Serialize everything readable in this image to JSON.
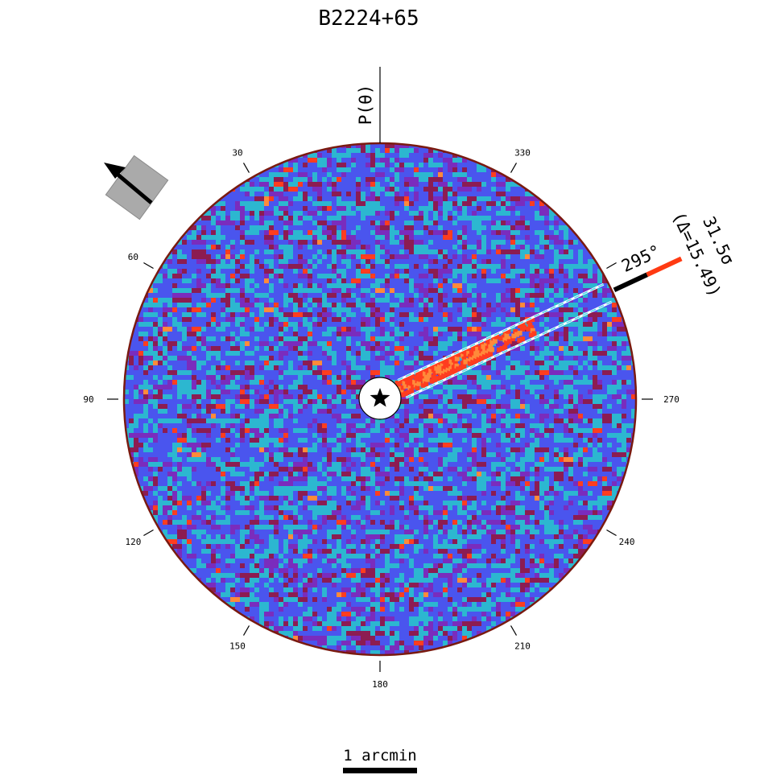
{
  "title": "B2224+65",
  "axis_label": "P(θ)",
  "angle_ticks": [
    {
      "value": 30,
      "label": "30"
    },
    {
      "value": 60,
      "label": "60"
    },
    {
      "value": 90,
      "label": "90"
    },
    {
      "value": 120,
      "label": "120"
    },
    {
      "value": 150,
      "label": "150"
    },
    {
      "value": 180,
      "label": "180"
    },
    {
      "value": 210,
      "label": "210"
    },
    {
      "value": 240,
      "label": "240"
    },
    {
      "value": 270,
      "label": "270"
    },
    {
      "value": 300,
      "label": ""
    },
    {
      "value": 330,
      "label": "330"
    }
  ],
  "feature": {
    "angle_deg": 295,
    "angle_label": "295°",
    "significance_label": "31.5σ",
    "delta_label": "(Δ=15.49)"
  },
  "scale_bar": {
    "label": "1 arcmin"
  },
  "colors": {
    "map_background": "#2cb7d0",
    "map_blue": "#4a55ee",
    "map_purple": "#7a2cbd",
    "map_maroon": "#8c1c52",
    "map_red": "#ff3d1f",
    "map_orange": "#ff8a3a",
    "rim": "#7a1a10",
    "feature_bar": "#ff3a12",
    "band_outline": "#4cd8e8",
    "motion_box": "#aaaaaa"
  },
  "icons": {
    "center": "star-icon",
    "motion": "proper-motion-arrow-icon"
  }
}
